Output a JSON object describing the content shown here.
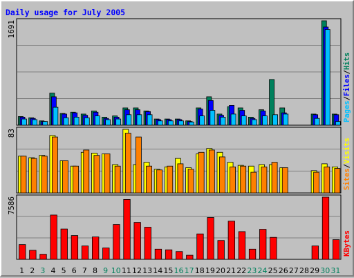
{
  "title": "Daily usage for July 2005",
  "colors": {
    "hits": "#00805c",
    "files": "#0000ff",
    "pages": "#00c0ff",
    "visits": "#ffff00",
    "sites": "#ff8000",
    "kbytes": "#ff0000",
    "weekday_label": "#000000",
    "weekend_label": "#00805c",
    "title": "#0000ff"
  },
  "chart_data": [
    {
      "type": "bar",
      "name": "hits-files-pages",
      "ymax_label": "1691",
      "legend": [
        {
          "text": "Pages",
          "color": "#00c0ff"
        },
        {
          "text": "/",
          "color": "#000000"
        },
        {
          "text": "Files",
          "color": "#0000ff"
        },
        {
          "text": "/",
          "color": "#000000"
        },
        {
          "text": "Hits",
          "color": "#00805c"
        }
      ],
      "ylim": [
        0,
        1691
      ],
      "series": [
        {
          "name": "Hits",
          "values": [
            140,
            120,
            70,
            520,
            190,
            210,
            180,
            230,
            130,
            150,
            280,
            280,
            230,
            100,
            100,
            100,
            70,
            280,
            460,
            180,
            300,
            280,
            130,
            250,
            740,
            280,
            0,
            0,
            180,
            1691,
            180
          ]
        },
        {
          "name": "Files",
          "values": [
            130,
            110,
            60,
            460,
            180,
            200,
            160,
            210,
            110,
            130,
            250,
            250,
            220,
            90,
            90,
            90,
            60,
            260,
            400,
            160,
            320,
            240,
            110,
            230,
            0,
            200,
            0,
            0,
            170,
            1590,
            170
          ]
        },
        {
          "name": "Pages",
          "values": [
            100,
            90,
            60,
            290,
            120,
            130,
            120,
            150,
            90,
            100,
            170,
            170,
            170,
            70,
            70,
            70,
            50,
            150,
            240,
            130,
            180,
            150,
            90,
            150,
            170,
            180,
            0,
            0,
            110,
            1550,
            60
          ]
        }
      ]
    },
    {
      "type": "bar",
      "name": "visits-sites",
      "ymax_label": "83",
      "legend": [
        {
          "text": "Sites",
          "color": "#ff8000"
        },
        {
          "text": "/",
          "color": "#000000"
        },
        {
          "text": "Visits",
          "color": "#ffff00"
        }
      ],
      "ylim": [
        0,
        83
      ],
      "series": [
        {
          "name": "Visits",
          "values": [
            48,
            46,
            49,
            75,
            42,
            35,
            53,
            52,
            51,
            37,
            83,
            37,
            40,
            31,
            34,
            45,
            33,
            51,
            58,
            53,
            40,
            36,
            35,
            37,
            37,
            33,
            0,
            0,
            29,
            38,
            34
          ]
        },
        {
          "name": "Sites",
          "values": [
            48,
            45,
            48,
            73,
            42,
            35,
            56,
            49,
            51,
            35,
            78,
            73,
            35,
            30,
            35,
            38,
            31,
            53,
            56,
            47,
            34,
            35,
            27,
            34,
            40,
            33,
            0,
            0,
            27,
            34,
            32
          ]
        }
      ]
    },
    {
      "type": "bar",
      "name": "kbytes",
      "ymax_label": "7586",
      "legend": [
        {
          "text": "KBytes",
          "color": "#ff0000"
        }
      ],
      "ylim": [
        0,
        7586
      ],
      "series": [
        {
          "name": "KBytes",
          "values": [
            1800,
            1100,
            620,
            5400,
            3700,
            2900,
            1630,
            2730,
            1390,
            4250,
            7300,
            4500,
            3920,
            1240,
            1160,
            950,
            500,
            3100,
            5100,
            2300,
            4650,
            3380,
            1240,
            3660,
            2680,
            0,
            0,
            0,
            1630,
            7586,
            2400
          ]
        }
      ]
    }
  ],
  "x_labels": [
    {
      "d": "1",
      "weekend": false
    },
    {
      "d": "2",
      "weekend": false
    },
    {
      "d": "3",
      "weekend": true
    },
    {
      "d": "4",
      "weekend": false
    },
    {
      "d": "5",
      "weekend": false
    },
    {
      "d": "6",
      "weekend": false
    },
    {
      "d": "7",
      "weekend": false
    },
    {
      "d": "8",
      "weekend": false
    },
    {
      "d": "9",
      "weekend": true
    },
    {
      "d": "10",
      "weekend": true
    },
    {
      "d": "11",
      "weekend": false
    },
    {
      "d": "12",
      "weekend": false
    },
    {
      "d": "13",
      "weekend": false
    },
    {
      "d": "14",
      "weekend": false
    },
    {
      "d": "15",
      "weekend": false
    },
    {
      "d": "16",
      "weekend": true
    },
    {
      "d": "17",
      "weekend": true
    },
    {
      "d": "18",
      "weekend": false
    },
    {
      "d": "19",
      "weekend": false
    },
    {
      "d": "20",
      "weekend": false
    },
    {
      "d": "21",
      "weekend": false
    },
    {
      "d": "22",
      "weekend": false
    },
    {
      "d": "23",
      "weekend": true
    },
    {
      "d": "24",
      "weekend": true
    },
    {
      "d": "25",
      "weekend": false
    },
    {
      "d": "26",
      "weekend": false
    },
    {
      "d": "27",
      "weekend": false
    },
    {
      "d": "28",
      "weekend": false
    },
    {
      "d": "29",
      "weekend": false
    },
    {
      "d": "30",
      "weekend": true
    },
    {
      "d": "31",
      "weekend": true
    }
  ]
}
